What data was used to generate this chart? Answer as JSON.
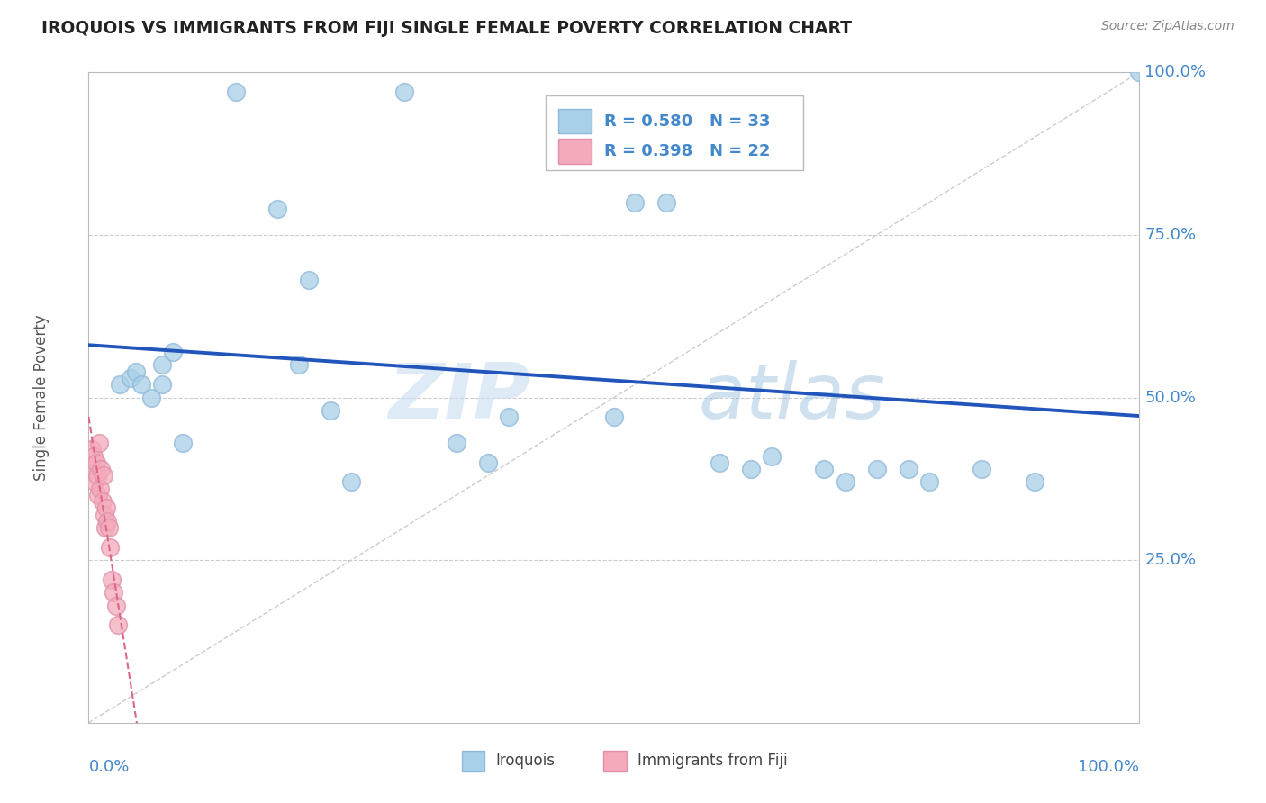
{
  "title": "IROQUOIS VS IMMIGRANTS FROM FIJI SINGLE FEMALE POVERTY CORRELATION CHART",
  "source": "Source: ZipAtlas.com",
  "ylabel": "Single Female Poverty",
  "watermark_zip": "ZIP",
  "watermark_atlas": "atlas",
  "legend_blue_r": "R = 0.580",
  "legend_blue_n": "N = 33",
  "legend_pink_r": "R = 0.398",
  "legend_pink_n": "N = 22",
  "blue_scatter_color": "#A8D0E8",
  "pink_scatter_color": "#F4AABB",
  "blue_line_color": "#2255BB",
  "pink_line_color": "#DD6688",
  "ref_line_color": "#CCCCCC",
  "grid_color": "#CCCCCC",
  "bg_color": "#FFFFFF",
  "title_color": "#222222",
  "axis_label_color": "#4488CC",
  "legend_text_color": "#4488CC",
  "iroquois_x": [
    0.14,
    0.3,
    0.18,
    0.21,
    0.03,
    0.04,
    0.045,
    0.05,
    0.06,
    0.07,
    0.07,
    0.08,
    0.09,
    0.2,
    0.23,
    0.25,
    0.35,
    0.38,
    0.4,
    0.5,
    0.52,
    0.55,
    0.6,
    0.63,
    0.65,
    0.7,
    0.72,
    0.75,
    0.78,
    0.8,
    0.85,
    0.9,
    1.0
  ],
  "iroquois_y": [
    0.97,
    0.97,
    0.79,
    0.68,
    0.52,
    0.53,
    0.54,
    0.52,
    0.5,
    0.55,
    0.52,
    0.57,
    0.43,
    0.55,
    0.48,
    0.37,
    0.43,
    0.4,
    0.47,
    0.47,
    0.8,
    0.8,
    0.4,
    0.39,
    0.41,
    0.39,
    0.37,
    0.39,
    0.39,
    0.37,
    0.39,
    0.37,
    1.0
  ],
  "fiji_x": [
    0.003,
    0.004,
    0.005,
    0.006,
    0.007,
    0.008,
    0.009,
    0.01,
    0.011,
    0.012,
    0.013,
    0.014,
    0.015,
    0.016,
    0.017,
    0.018,
    0.019,
    0.02,
    0.022,
    0.024,
    0.026,
    0.028
  ],
  "fiji_y": [
    0.42,
    0.39,
    0.41,
    0.37,
    0.4,
    0.38,
    0.35,
    0.43,
    0.36,
    0.39,
    0.34,
    0.38,
    0.32,
    0.3,
    0.33,
    0.31,
    0.3,
    0.27,
    0.22,
    0.2,
    0.18,
    0.15
  ],
  "yticks": [
    0.25,
    0.5,
    0.75,
    1.0
  ],
  "ytick_labels": [
    "25.0%",
    "50.0%",
    "75.0%",
    "100.0%"
  ]
}
